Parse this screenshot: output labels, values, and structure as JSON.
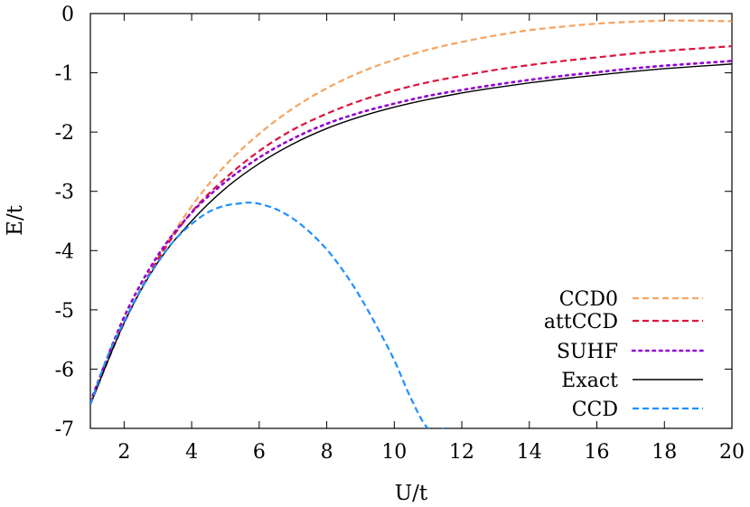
{
  "chart_data": {
    "type": "line",
    "xlabel": "U/t",
    "ylabel": "E/t",
    "xlim": [
      1,
      20
    ],
    "ylim": [
      -7,
      0
    ],
    "x_ticks": [
      2,
      4,
      6,
      8,
      10,
      12,
      14,
      16,
      18,
      20
    ],
    "y_ticks": [
      0,
      -1,
      -2,
      -3,
      -4,
      -5,
      -6,
      -7
    ],
    "grid": false,
    "legend_position": "bottom-right",
    "series": [
      {
        "name": "CCD0",
        "color": "#f4a460",
        "dash": "dashed",
        "x": [
          1,
          2,
          3,
          4,
          5,
          6,
          7,
          8,
          9,
          10,
          11,
          12,
          13,
          14,
          15,
          16,
          17,
          18,
          19,
          20
        ],
        "y": [
          -6.6,
          -5.22,
          -4.13,
          -3.25,
          -2.56,
          -2.03,
          -1.6,
          -1.26,
          -0.99,
          -0.78,
          -0.61,
          -0.48,
          -0.37,
          -0.28,
          -0.22,
          -0.17,
          -0.14,
          -0.12,
          -0.12,
          -0.13
        ]
      },
      {
        "name": "attCCD",
        "color": "#dc143c",
        "dash": "dashed",
        "x": [
          1,
          2,
          3,
          4,
          5,
          6,
          7,
          8,
          9,
          10,
          11,
          12,
          13,
          14,
          15,
          16,
          17,
          18,
          19,
          20
        ],
        "y": [
          -6.58,
          -5.22,
          -4.15,
          -3.35,
          -2.78,
          -2.32,
          -1.96,
          -1.69,
          -1.47,
          -1.3,
          -1.16,
          -1.05,
          -0.95,
          -0.87,
          -0.8,
          -0.74,
          -0.68,
          -0.63,
          -0.59,
          -0.55
        ]
      },
      {
        "name": "SUHF",
        "color": "#9400d3",
        "dash": "dotted",
        "x": [
          1,
          2,
          3,
          4,
          5,
          6,
          7,
          8,
          9,
          10,
          11,
          12,
          13,
          14,
          15,
          16,
          17,
          18,
          19,
          20
        ],
        "y": [
          -6.55,
          -5.12,
          -4.08,
          -3.36,
          -2.84,
          -2.43,
          -2.11,
          -1.86,
          -1.67,
          -1.52,
          -1.39,
          -1.29,
          -1.2,
          -1.12,
          -1.05,
          -0.99,
          -0.93,
          -0.88,
          -0.84,
          -0.8
        ]
      },
      {
        "name": "Exact",
        "color": "#000000",
        "dash": "solid",
        "x": [
          1,
          2,
          3,
          4,
          5,
          6,
          7,
          8,
          9,
          10,
          11,
          12,
          13,
          14,
          15,
          16,
          17,
          18,
          19,
          20
        ],
        "y": [
          -6.6,
          -5.22,
          -4.2,
          -3.5,
          -2.95,
          -2.53,
          -2.2,
          -1.94,
          -1.74,
          -1.58,
          -1.45,
          -1.34,
          -1.25,
          -1.17,
          -1.1,
          -1.04,
          -0.98,
          -0.93,
          -0.89,
          -0.85
        ]
      },
      {
        "name": "CCD",
        "color": "#1e90ff",
        "dash": "dashed",
        "x": [
          1,
          1.5,
          2,
          2.5,
          3,
          3.5,
          4,
          4.5,
          5,
          5.5,
          5.7,
          6,
          6.5,
          7,
          7.5,
          8,
          8.5,
          9,
          9.5,
          10,
          10.5,
          11,
          11.5
        ],
        "y": [
          -6.6,
          -5.8,
          -5.2,
          -4.65,
          -4.2,
          -3.82,
          -3.55,
          -3.35,
          -3.24,
          -3.2,
          -3.19,
          -3.21,
          -3.3,
          -3.46,
          -3.69,
          -3.98,
          -4.35,
          -4.79,
          -5.3,
          -5.85,
          -6.5,
          -7.0,
          -7.0
        ]
      }
    ]
  }
}
